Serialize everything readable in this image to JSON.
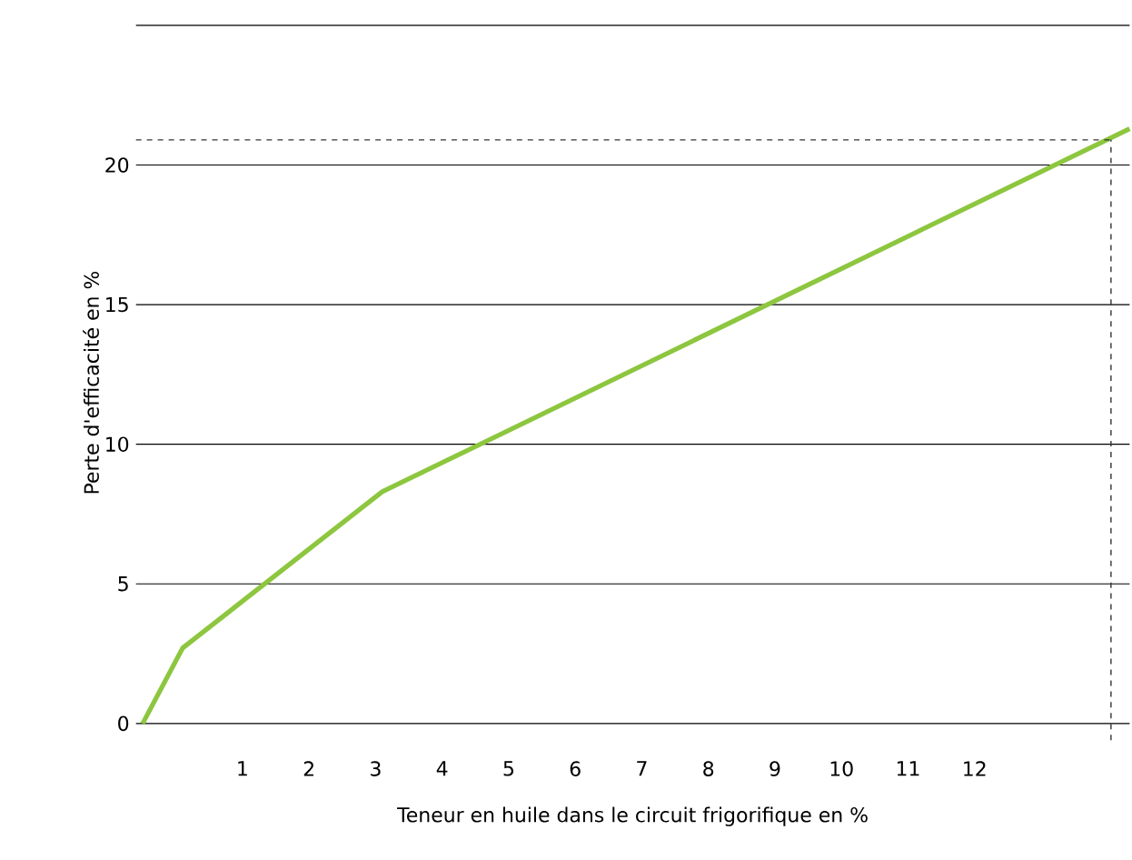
{
  "chart_data": {
    "type": "line",
    "xlabel": "Teneur en huile dans le circuit frigorifique en %",
    "ylabel": "Perte d'efficacité en %",
    "xlim": [
      -0.6,
      14.33
    ],
    "xticks": [
      1,
      2,
      3,
      4,
      5,
      6,
      7,
      8,
      9,
      10,
      11,
      12
    ],
    "ylim": [
      -0.6,
      25
    ],
    "yticks": [
      0,
      5,
      10,
      15,
      20,
      {
        "value": 25,
        "label": null
      }
    ],
    "grid": "y",
    "series": [
      {
        "color": "#8dc63f",
        "x": [
          -0.5,
          0.1,
          3.1,
          14.33
        ],
        "values": [
          0,
          2.7,
          8.3,
          21.3
        ],
        "line_style": "solid"
      },
      {
        "color": "#333333",
        "x": [
          -0.6,
          14.05
        ],
        "values": [
          20.9,
          20.9
        ],
        "line_style": "dashed"
      },
      {
        "color": "#333333",
        "x": [
          14.05,
          14.05
        ],
        "values": [
          -0.6,
          20.9
        ],
        "line_style": "dashed"
      }
    ]
  }
}
